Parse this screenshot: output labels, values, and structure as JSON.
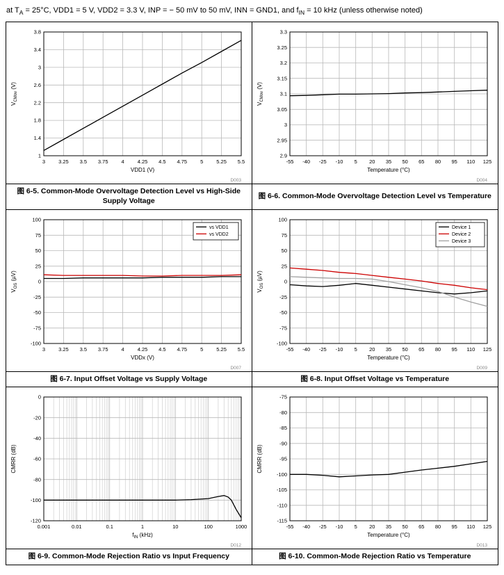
{
  "header": {
    "conditions": "at T_{A} = 25°C, VDD1 = 5 V, VDD2 = 3.3 V, INP = − 50 mV to 50 mV, INN = GND1, and f_{IN} = 10 kHz (unless otherwise noted)"
  },
  "colors": {
    "grid": "#b8b8b8",
    "grid_minor": "#cfcfcf",
    "code_gray": "#8a8a8a",
    "series_black": "#000000",
    "series_red": "#cc0000",
    "series_gray": "#a0a0a0"
  },
  "chart_data": [
    {
      "type": "line",
      "caption": "图 6-5. Common-Mode Overvoltage Detection Level vs High-Side Supply Voltage",
      "title": "Common-Mode Overvoltage Detection Level vs High-Side Supply Voltage",
      "code": "D003",
      "xlabel": "VDD1 (V)",
      "ylabel": "V_{CMov} (V)",
      "xscale": "linear",
      "xlim": [
        3,
        5.5
      ],
      "ylim": [
        1,
        3.8
      ],
      "x_ticks": [
        3,
        3.25,
        3.5,
        3.75,
        4,
        4.25,
        4.5,
        4.75,
        5,
        5.25,
        5.5
      ],
      "y_ticks": [
        1,
        1.4,
        1.8,
        2.2,
        2.6,
        3,
        3.4,
        3.8
      ],
      "grid": true,
      "legend": false,
      "series": [
        {
          "name": "VCMov",
          "color": "#000000",
          "points": [
            [
              3,
              1.12
            ],
            [
              3.25,
              1.37
            ],
            [
              3.5,
              1.62
            ],
            [
              3.75,
              1.87
            ],
            [
              4,
              2.12
            ],
            [
              4.25,
              2.37
            ],
            [
              4.5,
              2.62
            ],
            [
              4.75,
              2.87
            ],
            [
              5,
              3.11
            ],
            [
              5.25,
              3.36
            ],
            [
              5.5,
              3.61
            ]
          ]
        }
      ]
    },
    {
      "type": "line",
      "caption": "图 6-6. Common-Mode Overvoltage Detection Level vs Temperature",
      "title": "Common-Mode Overvoltage Detection Level vs Temperature",
      "code": "D004",
      "xlabel": "Temperature (°C)",
      "ylabel": "V_{CMov} (V)",
      "xscale": "linear",
      "xlim": [
        -55,
        125
      ],
      "ylim": [
        2.9,
        3.3
      ],
      "x_ticks": [
        -55,
        -40,
        -25,
        -10,
        5,
        20,
        35,
        50,
        65,
        80,
        95,
        110,
        125
      ],
      "y_ticks": [
        2.9,
        2.95,
        3,
        3.05,
        3.1,
        3.15,
        3.2,
        3.25,
        3.3
      ],
      "grid": true,
      "legend": false,
      "series": [
        {
          "name": "VCMov",
          "color": "#000000",
          "points": [
            [
              -55,
              3.094
            ],
            [
              -40,
              3.095
            ],
            [
              -25,
              3.097
            ],
            [
              -10,
              3.099
            ],
            [
              5,
              3.099
            ],
            [
              20,
              3.1
            ],
            [
              35,
              3.101
            ],
            [
              50,
              3.103
            ],
            [
              65,
              3.104
            ],
            [
              80,
              3.106
            ],
            [
              95,
              3.108
            ],
            [
              110,
              3.11
            ],
            [
              125,
              3.112
            ]
          ]
        }
      ]
    },
    {
      "type": "line",
      "caption": "图 6-7. Input Offset Voltage vs Supply Voltage",
      "title": "Input Offset Voltage vs Supply Voltage",
      "code": "D007",
      "xlabel": "VDDx (V)",
      "ylabel": "V_{OS} (µV)",
      "xscale": "linear",
      "xlim": [
        3,
        5.5
      ],
      "ylim": [
        -100,
        100
      ],
      "x_ticks": [
        3,
        3.25,
        3.5,
        3.75,
        4,
        4.25,
        4.5,
        4.75,
        5,
        5.25,
        5.5
      ],
      "y_ticks": [
        -100,
        -75,
        -50,
        -25,
        0,
        25,
        50,
        75,
        100
      ],
      "grid": true,
      "legend": true,
      "legend_position": "top-right",
      "series": [
        {
          "name": "vs VDD1",
          "color": "#000000",
          "points": [
            [
              3,
              5
            ],
            [
              3.25,
              5
            ],
            [
              3.5,
              6
            ],
            [
              3.75,
              6
            ],
            [
              4,
              6
            ],
            [
              4.25,
              6
            ],
            [
              4.5,
              7
            ],
            [
              4.75,
              7
            ],
            [
              5,
              7
            ],
            [
              5.25,
              8
            ],
            [
              5.5,
              8
            ]
          ]
        },
        {
          "name": "vs VDD2",
          "color": "#cc0000",
          "points": [
            [
              3,
              11
            ],
            [
              3.25,
              10
            ],
            [
              3.5,
              10
            ],
            [
              3.75,
              10
            ],
            [
              4,
              10
            ],
            [
              4.25,
              9
            ],
            [
              4.5,
              9
            ],
            [
              4.75,
              10
            ],
            [
              5,
              10
            ],
            [
              5.25,
              10
            ],
            [
              5.5,
              11
            ]
          ]
        }
      ]
    },
    {
      "type": "line",
      "caption": "图 6-8. Input Offset Voltage vs Temperature",
      "title": "Input Offset Voltage vs Temperature",
      "code": "D009",
      "xlabel": "Temperature (°C)",
      "ylabel": "V_{OS} (µV)",
      "xscale": "linear",
      "xlim": [
        -55,
        125
      ],
      "ylim": [
        -100,
        100
      ],
      "x_ticks": [
        -55,
        -40,
        -25,
        -10,
        5,
        20,
        35,
        50,
        65,
        80,
        95,
        110,
        125
      ],
      "y_ticks": [
        -100,
        -75,
        -50,
        -25,
        0,
        25,
        50,
        75,
        100
      ],
      "grid": true,
      "legend": true,
      "legend_position": "top-right",
      "series": [
        {
          "name": "Device 1",
          "color": "#000000",
          "points": [
            [
              -55,
              -5
            ],
            [
              -40,
              -7
            ],
            [
              -25,
              -8
            ],
            [
              -10,
              -6
            ],
            [
              5,
              -3
            ],
            [
              20,
              -6
            ],
            [
              35,
              -9
            ],
            [
              50,
              -12
            ],
            [
              65,
              -15
            ],
            [
              80,
              -18
            ],
            [
              95,
              -20
            ],
            [
              110,
              -18
            ],
            [
              125,
              -15
            ]
          ]
        },
        {
          "name": "Device 2",
          "color": "#cc0000",
          "points": [
            [
              -55,
              22
            ],
            [
              -40,
              20
            ],
            [
              -25,
              18
            ],
            [
              -10,
              15
            ],
            [
              5,
              13
            ],
            [
              20,
              10
            ],
            [
              35,
              7
            ],
            [
              50,
              4
            ],
            [
              65,
              1
            ],
            [
              80,
              -3
            ],
            [
              95,
              -6
            ],
            [
              110,
              -10
            ],
            [
              125,
              -13
            ]
          ]
        },
        {
          "name": "Device 3",
          "color": "#a0a0a0",
          "points": [
            [
              -55,
              8
            ],
            [
              -40,
              7
            ],
            [
              -25,
              6
            ],
            [
              -10,
              5
            ],
            [
              5,
              5
            ],
            [
              20,
              4
            ],
            [
              35,
              0
            ],
            [
              50,
              -5
            ],
            [
              65,
              -10
            ],
            [
              80,
              -16
            ],
            [
              95,
              -25
            ],
            [
              110,
              -33
            ],
            [
              125,
              -40
            ]
          ]
        }
      ]
    },
    {
      "type": "line",
      "caption": "图 6-9. Common-Mode Rejection Ratio vs Input Frequency",
      "title": "Common-Mode Rejection Ratio vs Input Frequency",
      "code": "D012",
      "xlabel": "f_{IN} (kHz)",
      "ylabel": "CMRR (dB)",
      "xscale": "log",
      "xlim": [
        0.001,
        1000
      ],
      "ylim": [
        -120,
        0
      ],
      "x_ticks": [
        0.001,
        0.01,
        0.1,
        1,
        10,
        100,
        1000
      ],
      "y_ticks": [
        0,
        -20,
        -40,
        -60,
        -80,
        -100,
        -120
      ],
      "grid": true,
      "legend": false,
      "series": [
        {
          "name": "CMRR",
          "color": "#000000",
          "points": [
            [
              0.001,
              -100
            ],
            [
              0.003,
              -100
            ],
            [
              0.01,
              -100
            ],
            [
              0.03,
              -100
            ],
            [
              0.1,
              -100
            ],
            [
              0.3,
              -100
            ],
            [
              1,
              -100
            ],
            [
              3,
              -100
            ],
            [
              10,
              -100
            ],
            [
              30,
              -99.5
            ],
            [
              100,
              -98.5
            ],
            [
              200,
              -96.5
            ],
            [
              300,
              -95.5
            ],
            [
              400,
              -97
            ],
            [
              500,
              -100
            ],
            [
              700,
              -109
            ],
            [
              1000,
              -117
            ]
          ]
        }
      ]
    },
    {
      "type": "line",
      "caption": "图 6-10. Common-Mode Rejection Ratio vs Temperature",
      "title": "Common-Mode Rejection Ratio vs Temperature",
      "code": "D013",
      "xlabel": "Temperature (°C)",
      "ylabel": "CMRR (dB)",
      "xscale": "linear",
      "xlim": [
        -55,
        125
      ],
      "ylim": [
        -115,
        -75
      ],
      "x_ticks": [
        -55,
        -40,
        -25,
        -10,
        5,
        20,
        35,
        50,
        65,
        80,
        95,
        110,
        125
      ],
      "y_ticks": [
        -75,
        -80,
        -85,
        -90,
        -95,
        -100,
        -105,
        -110,
        -115
      ],
      "grid": true,
      "legend": false,
      "series": [
        {
          "name": "CMRR",
          "color": "#000000",
          "points": [
            [
              -55,
              -100
            ],
            [
              -40,
              -100
            ],
            [
              -25,
              -100.3
            ],
            [
              -10,
              -100.8
            ],
            [
              5,
              -100.5
            ],
            [
              20,
              -100.2
            ],
            [
              35,
              -100
            ],
            [
              50,
              -99.3
            ],
            [
              65,
              -98.6
            ],
            [
              80,
              -98
            ],
            [
              95,
              -97.4
            ],
            [
              110,
              -96.6
            ],
            [
              125,
              -95.8
            ]
          ]
        }
      ]
    }
  ]
}
